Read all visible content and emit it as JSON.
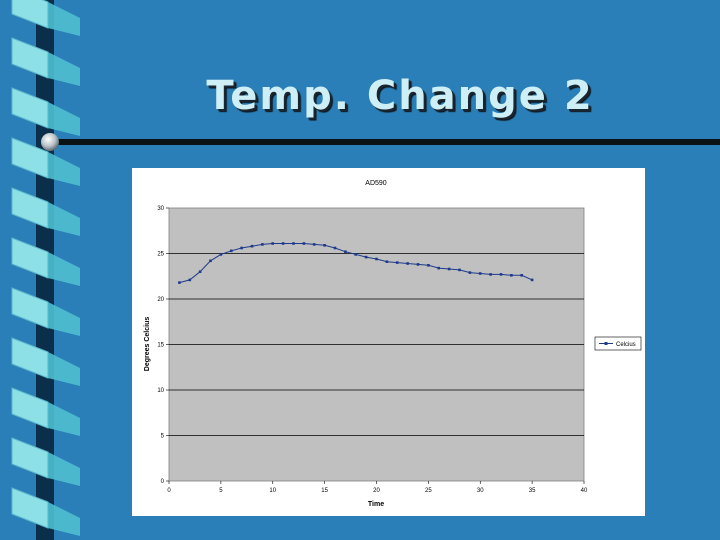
{
  "slide": {
    "title": "Temp. Change 2"
  },
  "colors": {
    "background": "#2a7fb8",
    "title_text": "#cdeff5",
    "plot_area": "#c0c0c0",
    "series_line": "#1f3a8c",
    "ribbon_light": "#8de0e6",
    "ribbon_dark": "#0b2f4a"
  },
  "chart_data": {
    "type": "line",
    "title": "AD590",
    "xlabel": "Time",
    "ylabel": "Degrees Celcius",
    "xlim": [
      0,
      40
    ],
    "ylim": [
      0,
      30
    ],
    "x_ticks": [
      0,
      5,
      10,
      15,
      20,
      25,
      30,
      35,
      40
    ],
    "y_ticks": [
      0,
      5,
      10,
      15,
      20,
      25,
      30
    ],
    "grid": "horizontal",
    "legend_position": "right",
    "series": [
      {
        "name": "Celcius",
        "x": [
          1,
          2,
          3,
          4,
          5,
          6,
          7,
          8,
          9,
          10,
          11,
          12,
          13,
          14,
          15,
          16,
          17,
          18,
          19,
          20,
          21,
          22,
          23,
          24,
          25,
          26,
          27,
          28,
          29,
          30,
          31,
          32,
          33,
          34,
          35
        ],
        "y": [
          21.8,
          22.1,
          23.0,
          24.2,
          24.9,
          25.3,
          25.6,
          25.8,
          26.0,
          26.1,
          26.1,
          26.1,
          26.1,
          26.0,
          25.9,
          25.6,
          25.2,
          24.9,
          24.6,
          24.4,
          24.1,
          24.0,
          23.9,
          23.8,
          23.7,
          23.4,
          23.3,
          23.2,
          22.9,
          22.8,
          22.7,
          22.7,
          22.6,
          22.6,
          22.1
        ]
      }
    ]
  }
}
